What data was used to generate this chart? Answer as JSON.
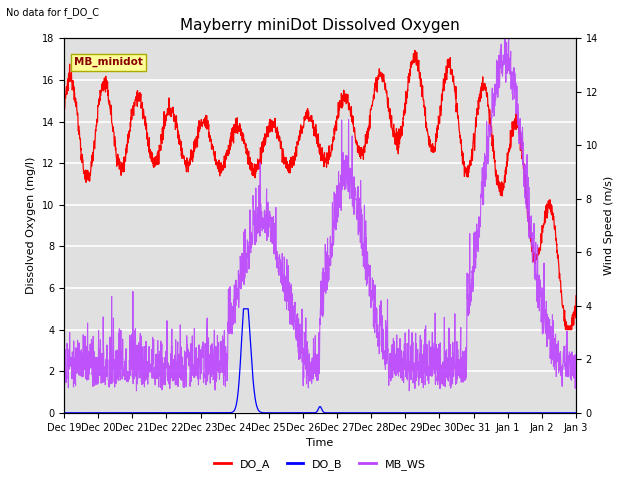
{
  "title": "Mayberry miniDot Dissolved Oxygen",
  "subtitle": "No data for f_DO_C",
  "xlabel": "Time",
  "ylabel_left": "Dissolved Oxygen (mg/l)",
  "ylabel_right": "Wind Speed (m/s)",
  "ylim_left": [
    0,
    18
  ],
  "ylim_right": [
    0,
    14
  ],
  "legend_label_box": "MB_minidot",
  "legend_entries": [
    "DO_A",
    "DO_B",
    "MB_WS"
  ],
  "legend_colors": [
    "#ff0000",
    "#0000ff",
    "#bb44ff"
  ],
  "line_colors_DO_A": "#ff0000",
  "line_colors_DO_B": "#0000ff",
  "line_colors_MB_WS": "#bb44ff",
  "background_color": "#ffffff",
  "plot_bg_color": "#e0e0e0",
  "grid_color": "#ffffff",
  "xtick_labels": [
    "Dec 19",
    "Dec 20",
    "Dec 21",
    "Dec 22",
    "Dec 23",
    "Dec 24",
    "Dec 25",
    "Dec 26",
    "Dec 27",
    "Dec 28",
    "Dec 29",
    "Dec 30",
    "Dec 31",
    "Jan 1",
    "Jan 2",
    "Jan 3"
  ],
  "title_fontsize": 11,
  "label_fontsize": 8,
  "tick_fontsize": 7,
  "num_days": 15
}
